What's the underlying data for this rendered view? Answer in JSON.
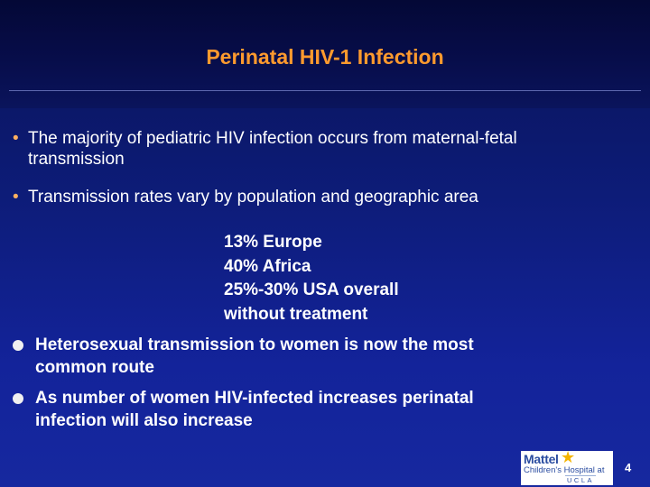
{
  "slide": {
    "title": "Perinatal HIV-1 Infection",
    "bullets": [
      {
        "line1": "The majority of pediatric HIV infection occurs from maternal-fetal",
        "line2": "transmission"
      },
      {
        "line1": "Transmission rates vary by population and geographic area"
      }
    ],
    "rates": [
      "13% Europe",
      "40% Africa",
      "25%-30% USA overall",
      "without treatment"
    ],
    "bold_bullets": [
      {
        "line1": "Heterosexual transmission to women is now the most",
        "line2": "common route"
      },
      {
        "line1": "As number of women HIV-infected increases perinatal",
        "line2": "infection will also increase"
      }
    ],
    "logo": {
      "brand": "Mattel",
      "sub": "Children's Hospital at",
      "ucla": "UCLA"
    },
    "page_number": "4",
    "colors": {
      "title": "#ff9a2e",
      "background": "#0d1c78",
      "text": "#ffffff"
    }
  }
}
